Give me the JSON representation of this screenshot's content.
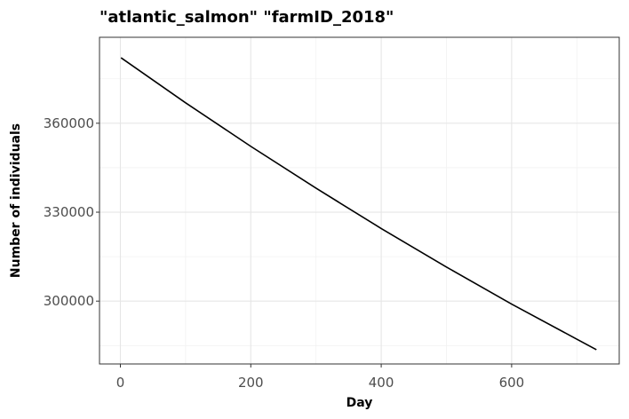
{
  "chart_data": {
    "type": "line",
    "title": "\"atlantic_salmon\" \"farmID_2018\"",
    "xlabel": "Day",
    "ylabel": "Number of individuals",
    "xlim": [
      -32,
      765
    ],
    "ylim": [
      278800,
      389000
    ],
    "x_ticks": [
      0,
      200,
      400,
      600
    ],
    "x_tick_labels": [
      "0",
      "200",
      "400",
      "600"
    ],
    "y_ticks": [
      300000,
      330000,
      360000
    ],
    "y_tick_labels": [
      "300000",
      "330000",
      "360000"
    ],
    "grid": true,
    "series": [
      {
        "values": [
          [
            1,
            382100
          ],
          [
            100,
            366900
          ],
          [
            200,
            352200
          ],
          [
            300,
            338100
          ],
          [
            400,
            324500
          ],
          [
            500,
            311500
          ],
          [
            600,
            299000
          ],
          [
            730,
            283600
          ]
        ]
      }
    ]
  }
}
